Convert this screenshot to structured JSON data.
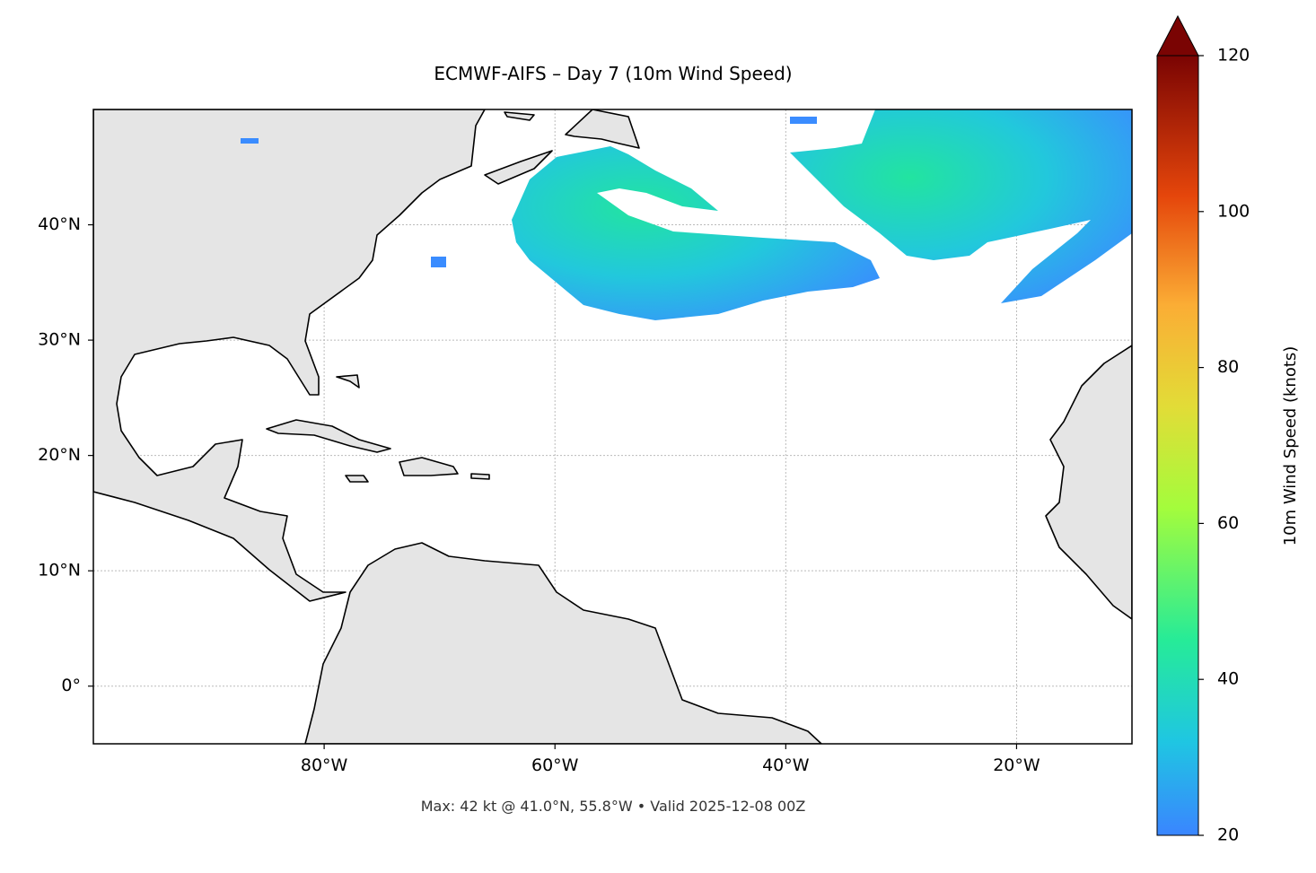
{
  "chart_data": {
    "type": "map",
    "title": "ECMWF-AIFS – Day 7 (10m Wind Speed)",
    "xlim": [
      -100,
      -10
    ],
    "ylim": [
      -5,
      50
    ],
    "xticks": [
      {
        "value": -80,
        "label": "80°W"
      },
      {
        "value": -60,
        "label": "60°W"
      },
      {
        "value": -40,
        "label": "40°W"
      },
      {
        "value": -20,
        "label": "20°W"
      }
    ],
    "yticks": [
      {
        "value": 0,
        "label": "0°"
      },
      {
        "value": 10,
        "label": "10°N"
      },
      {
        "value": 20,
        "label": "20°N"
      },
      {
        "value": 30,
        "label": "30°N"
      },
      {
        "value": 40,
        "label": "40°N"
      }
    ],
    "grid": true,
    "colorbar": {
      "label": "10m Wind Speed (knots)",
      "lim": [
        20,
        120
      ],
      "ticks": [
        20,
        40,
        60,
        80,
        100,
        120
      ]
    },
    "note": "Max: 42 kt @ 41.0°N, 55.8°W • Valid 2025-12-08 00Z"
  }
}
